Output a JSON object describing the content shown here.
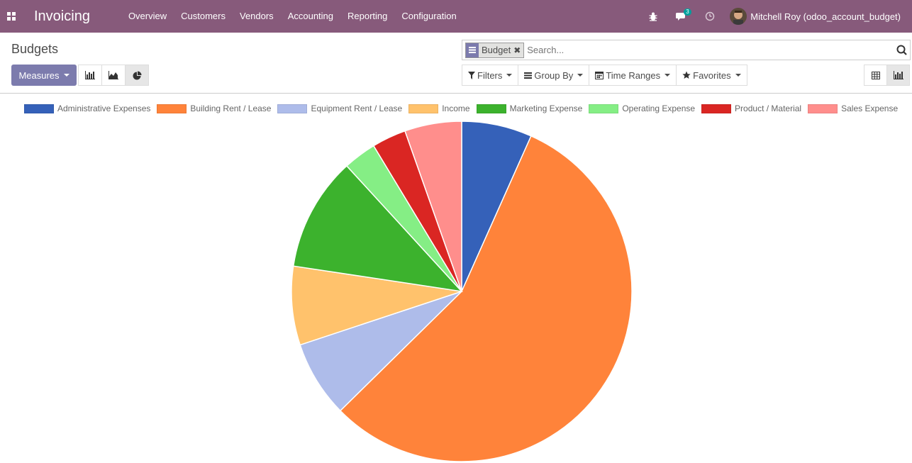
{
  "navbar": {
    "app_title": "Invoicing",
    "menu": [
      "Overview",
      "Customers",
      "Vendors",
      "Accounting",
      "Reporting",
      "Configuration"
    ],
    "messages_count": "3",
    "user_name": "Mitchell Roy (odoo_account_budget)",
    "bg_color": "#875A7B"
  },
  "control_panel": {
    "breadcrumb": "Budgets",
    "measures_label": "Measures",
    "search": {
      "facet_label": "Budget",
      "placeholder": "Search..."
    },
    "filters_label": "Filters",
    "group_by_label": "Group By",
    "time_ranges_label": "Time Ranges",
    "favorites_label": "Favorites"
  },
  "chart_data": {
    "type": "pie",
    "categories": [
      "Administrative Expenses",
      "Building Rent / Lease",
      "Equipment Rent / Lease",
      "Income",
      "Marketing Expense",
      "Operating Expense",
      "Product / Material",
      "Sales Expense"
    ],
    "values": [
      6.8,
      56.9,
      7.4,
      7.6,
      11.0,
      3.2,
      3.3,
      5.5
    ],
    "colors": [
      "#3561B9",
      "#FF833A",
      "#AEBCEA",
      "#FFC26C",
      "#3CB22D",
      "#85EE85",
      "#DA2623",
      "#FF8E8C"
    ],
    "legend": "top"
  }
}
